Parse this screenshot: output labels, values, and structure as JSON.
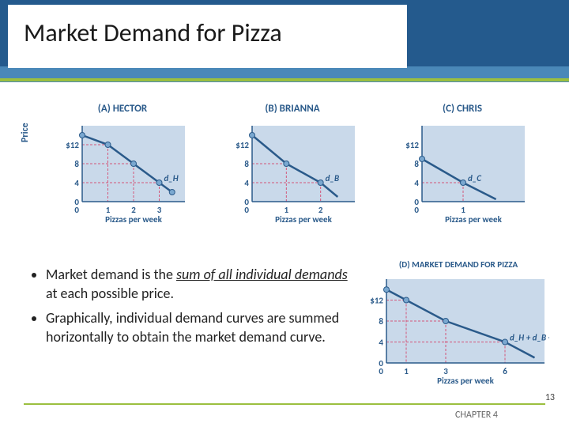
{
  "title": "Market Demand for Pizza",
  "price_axis_label": "Price",
  "panels": {
    "a": {
      "title": "(A) HECTOR",
      "xlabel": "Pizzas per week",
      "yticks": [
        "$12",
        "8",
        "4",
        "0"
      ],
      "xticks": [
        "1",
        "2",
        "3"
      ],
      "curve_label": "d_H",
      "points": [
        [
          0,
          14
        ],
        [
          1,
          12
        ],
        [
          2,
          8
        ],
        [
          3,
          4
        ],
        [
          3.5,
          2
        ]
      ],
      "ylim": [
        0,
        16
      ],
      "xlim": [
        0,
        4
      ],
      "line_color": "#2a5a8a",
      "point_color": "#7aa8d0",
      "bg": "#c9d9ea",
      "guide_color": "#d4567a"
    },
    "b": {
      "title": "(B) BRIANNA",
      "xlabel": "Pizzas per week",
      "yticks": [
        "$12",
        "8",
        "4",
        "0"
      ],
      "xticks": [
        "1",
        "2"
      ],
      "curve_label": "d_B",
      "points": [
        [
          0,
          14
        ],
        [
          1,
          8
        ],
        [
          2,
          4
        ],
        [
          2.5,
          1
        ]
      ],
      "ylim": [
        0,
        16
      ],
      "xlim": [
        0,
        3
      ],
      "line_color": "#2a5a8a",
      "point_color": "#7aa8d0",
      "bg": "#c9d9ea",
      "guide_color": "#d4567a"
    },
    "c": {
      "title": "(C) CHRIS",
      "xlabel": "Pizzas per week",
      "yticks": [
        "$12",
        "8",
        "4",
        "0"
      ],
      "xticks": [
        "1"
      ],
      "curve_label": "d_C",
      "points": [
        [
          0,
          9
        ],
        [
          1,
          4
        ],
        [
          1.8,
          0.5
        ]
      ],
      "ylim": [
        0,
        16
      ],
      "xlim": [
        0,
        2.5
      ],
      "line_color": "#2a5a8a",
      "point_color": "#7aa8d0",
      "bg": "#c9d9ea",
      "guide_color": "#d4567a"
    },
    "d": {
      "title": "(D) MARKET DEMAND FOR PIZZA",
      "xlabel": "Pizzas per week",
      "yticks": [
        "$12",
        "8",
        "4",
        "0"
      ],
      "xticks": [
        "1",
        "3",
        "6"
      ],
      "curve_label": "d_H + d_B + d_C = D",
      "points": [
        [
          0,
          14
        ],
        [
          1,
          12
        ],
        [
          3,
          8
        ],
        [
          6,
          4
        ],
        [
          7.5,
          1
        ]
      ],
      "ylim": [
        0,
        16
      ],
      "xlim": [
        0,
        8
      ],
      "line_color": "#2a5a8a",
      "point_color": "#7aa8d0",
      "bg": "#c9d9ea",
      "guide_color": "#d4567a"
    }
  },
  "bullets": [
    {
      "pre": "Market demand is the ",
      "em": "sum of all individual demands",
      "post": " at each possible price."
    },
    {
      "pre": "Graphically, individual demand curves are summed horizontally to obtain the market demand curve.",
      "em": "",
      "post": ""
    }
  ],
  "footer": {
    "chapter": "CHAPTER 4",
    "page": "13"
  }
}
